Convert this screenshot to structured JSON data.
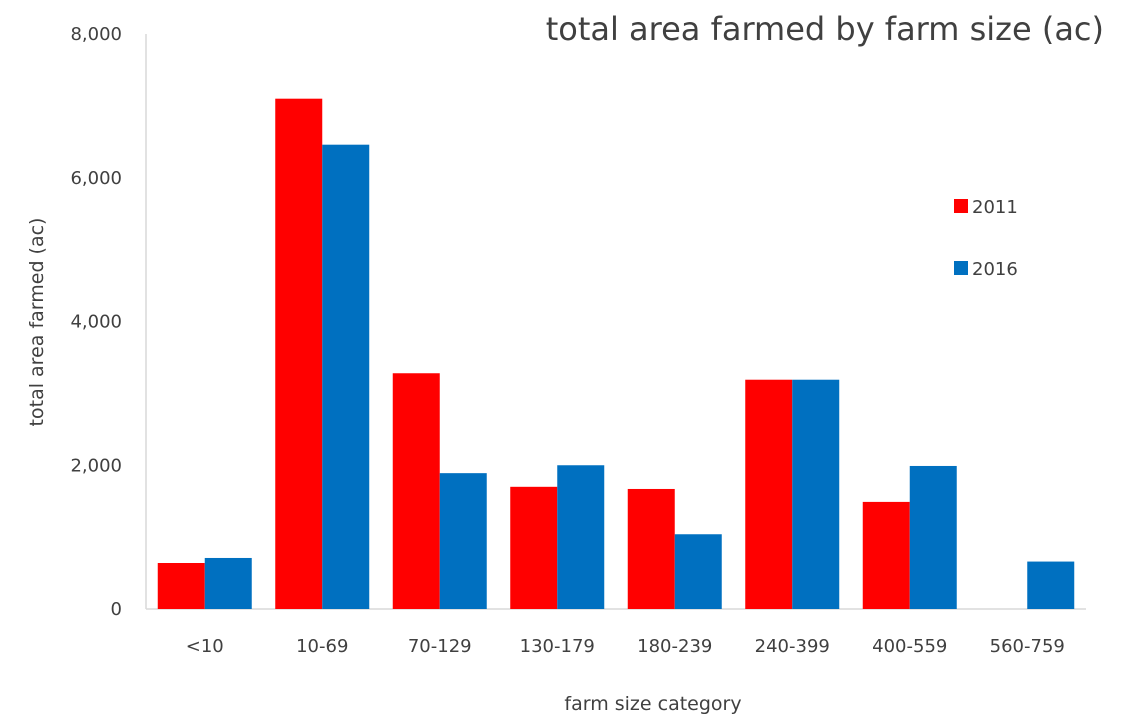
{
  "chart_data": {
    "type": "bar",
    "title": "total area farmed by farm size (ac)",
    "xlabel": "farm size category",
    "ylabel": "total area farmed (ac)",
    "categories": [
      "<10",
      "10-69",
      "70-129",
      "130-179",
      "180-239",
      "240-399",
      "400-559",
      "560-759"
    ],
    "series": [
      {
        "name": "2011",
        "color": "#ff0000",
        "values": [
          640,
          7100,
          3280,
          1700,
          1670,
          3190,
          1490,
          0
        ]
      },
      {
        "name": "2016",
        "color": "#0070c0",
        "values": [
          710,
          6460,
          1890,
          2000,
          1040,
          3190,
          1990,
          660
        ]
      }
    ],
    "ylim": [
      0,
      8000
    ],
    "yticks": [
      0,
      2000,
      4000,
      6000,
      8000
    ],
    "ytick_labels": [
      "0",
      "2,000",
      "4,000",
      "6,000",
      "8,000"
    ],
    "grid": false,
    "legend_position": "right"
  }
}
